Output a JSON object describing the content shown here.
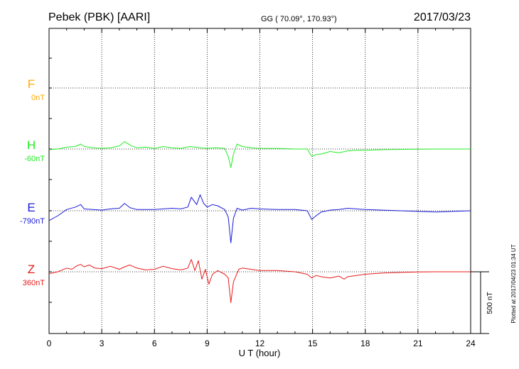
{
  "header": {
    "station": "Pebek (PBK)  [AARI]",
    "coords": "GG ( 70.09°, 170.93°)",
    "date": "2017/03/23"
  },
  "footer": {
    "plotted": "Plotted at 2017/04/23 01:34  UT"
  },
  "chart_data": {
    "type": "line",
    "xlabel": "U T (hour)",
    "xlim": [
      0,
      24
    ],
    "xticks": [
      "0",
      "3",
      "6",
      "9",
      "12",
      "15",
      "18",
      "21",
      "24"
    ],
    "grid": true,
    "scale_bar": {
      "label": "500 nT",
      "value_nT": 500
    },
    "colors": {
      "F": "#ffaa00",
      "H": "#22ee22",
      "E": "#1a1ad8",
      "Z": "#e81b1b"
    },
    "series": [
      {
        "name": "F",
        "baseline": "0nT",
        "x": [],
        "y": []
      },
      {
        "name": "H",
        "baseline": "-60nT",
        "x": [
          0,
          0.5,
          1,
          1.5,
          1.8,
          2,
          2.5,
          3,
          3.5,
          4,
          4.3,
          4.7,
          5,
          5.5,
          6,
          6.5,
          7,
          7.5,
          8,
          8.3,
          8.6,
          9,
          9.5,
          10,
          10.2,
          10.35,
          10.5,
          10.7,
          11,
          11.5,
          12,
          13,
          14,
          14.7,
          14.95,
          15.2,
          15.5,
          16,
          16.5,
          17,
          17.5,
          18,
          19,
          20,
          21,
          22,
          23,
          24
        ],
        "y": [
          -5,
          0,
          15,
          20,
          40,
          20,
          10,
          5,
          10,
          25,
          60,
          25,
          10,
          15,
          5,
          20,
          10,
          5,
          20,
          15,
          10,
          5,
          10,
          5,
          -60,
          -150,
          -40,
          40,
          20,
          10,
          5,
          5,
          0,
          0,
          -60,
          -45,
          -40,
          -20,
          -30,
          -15,
          -10,
          -10,
          -5,
          -3,
          -2,
          0,
          0,
          0
        ]
      },
      {
        "name": "E",
        "baseline": "-790nT",
        "x": [
          0,
          0.5,
          1,
          1.5,
          1.8,
          2,
          2.5,
          3,
          3.5,
          4,
          4.3,
          4.6,
          5,
          6,
          7,
          7.5,
          7.9,
          8.1,
          8.4,
          8.6,
          8.8,
          9,
          9.3,
          9.6,
          10,
          10.2,
          10.35,
          10.5,
          10.7,
          11,
          11.5,
          12,
          13,
          14,
          14.7,
          14.95,
          15.2,
          15.5,
          16,
          16.5,
          17,
          17.5,
          18,
          19,
          20,
          21,
          22,
          23,
          24
        ],
        "y": [
          -80,
          -40,
          10,
          30,
          50,
          15,
          10,
          5,
          15,
          20,
          60,
          25,
          10,
          10,
          20,
          15,
          30,
          110,
          50,
          130,
          60,
          30,
          50,
          40,
          10,
          -50,
          -260,
          -60,
          20,
          5,
          20,
          15,
          10,
          10,
          0,
          -70,
          -40,
          -10,
          5,
          10,
          20,
          15,
          10,
          5,
          0,
          -5,
          -10,
          -5,
          0
        ]
      },
      {
        "name": "Z",
        "baseline": "360nT",
        "x": [
          0,
          0.5,
          1,
          1.3,
          1.6,
          1.8,
          2,
          2.3,
          2.6,
          3,
          3.5,
          4,
          4.3,
          4.6,
          5,
          5.5,
          6,
          6.5,
          7,
          7.5,
          7.9,
          8.1,
          8.3,
          8.5,
          8.7,
          8.9,
          9.1,
          9.3,
          9.6,
          10,
          10.2,
          10.35,
          10.5,
          10.8,
          11,
          11.5,
          12,
          13,
          14,
          14.7,
          14.95,
          15.2,
          15.5,
          16,
          16.5,
          16.8,
          17,
          17.5,
          18,
          19,
          20,
          21,
          22,
          23,
          24
        ],
        "y": [
          -15,
          0,
          30,
          20,
          50,
          60,
          40,
          55,
          30,
          25,
          45,
          20,
          40,
          55,
          30,
          15,
          20,
          45,
          25,
          15,
          30,
          100,
          10,
          90,
          -60,
          20,
          -100,
          -20,
          10,
          -20,
          -50,
          -250,
          -80,
          20,
          30,
          20,
          10,
          10,
          0,
          -20,
          -50,
          -30,
          -40,
          -50,
          -35,
          -60,
          -40,
          -30,
          -20,
          -10,
          -5,
          -2,
          0,
          0,
          0
        ]
      }
    ]
  }
}
